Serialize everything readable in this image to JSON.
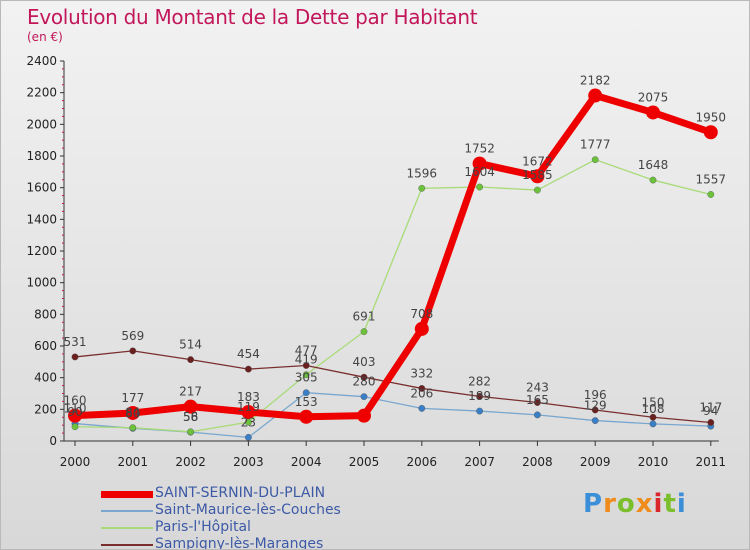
{
  "title": "Evolution du Montant de la Dette par Habitant",
  "unit": "(en €)",
  "logo_text": "Proxiti",
  "chart_data": {
    "type": "line",
    "title": "Evolution du Montant de la Dette par Habitant",
    "ylabel": "(en €)",
    "xlabel": "",
    "x": [
      "2000",
      "2001",
      "2002",
      "2003",
      "2004",
      "2005",
      "2006",
      "2007",
      "2008",
      "2009",
      "2010",
      "2011"
    ],
    "ylim": [
      0,
      2400
    ],
    "yticks": [
      "0",
      "200",
      "400",
      "600",
      "800",
      "1000",
      "1200",
      "1400",
      "1600",
      "1800",
      "2000",
      "2200",
      "2400"
    ],
    "grid": false,
    "legend_position": "bottom-left",
    "series": [
      {
        "name": "SAINT-SERNIN-DU-PLAIN",
        "color": "#ee0000",
        "point_color": "#ee0000",
        "width": 7,
        "values": [
          160,
          177,
          217,
          183,
          153,
          160,
          708,
          1752,
          1672,
          2182,
          2075,
          1950
        ],
        "labels": [
          "160",
          "177",
          "217",
          "183",
          "153",
          "",
          "708",
          "1752",
          "1672",
          "2182",
          "2075",
          "1950"
        ]
      },
      {
        "name": "Saint-Maurice-lès-Couches",
        "color": "#79a7cf",
        "point_color": "#3a7fc6",
        "width": 1.3,
        "values": [
          110,
          80,
          56,
          23,
          305,
          280,
          206,
          189,
          165,
          129,
          108,
          94
        ],
        "labels": [
          "110",
          "80",
          "56",
          "23",
          "305",
          "280",
          "206",
          "189",
          "165",
          "129",
          "108",
          "94"
        ]
      },
      {
        "name": "Paris-l'Hôpital",
        "color": "#a8db78",
        "point_color": "#6cc23a",
        "width": 1.3,
        "values": [
          90,
          84,
          58,
          119,
          419,
          691,
          1596,
          1604,
          1585,
          1777,
          1648,
          1557
        ],
        "labels": [
          "90",
          "84",
          "58",
          "119",
          "419",
          "691",
          "1596",
          "1604",
          "1585",
          "1777",
          "1648",
          "1557"
        ]
      },
      {
        "name": "Sampigny-lès-Maranges",
        "color": "#7a2f2f",
        "point_color": "#6b1f1f",
        "width": 1.3,
        "values": [
          531,
          569,
          514,
          454,
          477,
          403,
          332,
          282,
          243,
          196,
          150,
          117
        ],
        "labels": [
          "531",
          "569",
          "514",
          "454",
          "477",
          "403",
          "332",
          "282",
          "243",
          "196",
          "150",
          "117"
        ]
      }
    ]
  }
}
